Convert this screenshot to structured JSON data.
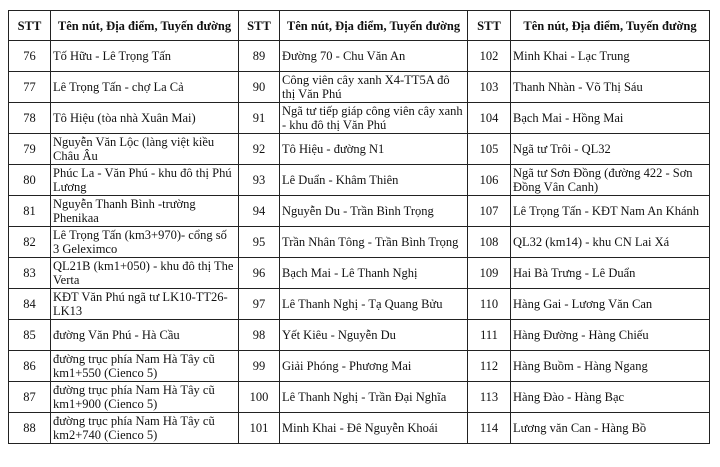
{
  "headers": {
    "stt": "STT",
    "name": "Tên nút, Địa điểm, Tuyến đường"
  },
  "rows": [
    [
      {
        "stt": "76",
        "name": "Tố Hữu - Lê Trọng Tấn"
      },
      {
        "stt": "89",
        "name": "Đường 70 - Chu Văn An"
      },
      {
        "stt": "102",
        "name": "Minh Khai - Lạc Trung"
      }
    ],
    [
      {
        "stt": "77",
        "name": "Lê Trọng Tấn - chợ La Cả"
      },
      {
        "stt": "90",
        "name": "Công viên cây xanh X4-TT5A đô thị Văn Phú"
      },
      {
        "stt": "103",
        "name": "Thanh Nhàn - Võ Thị Sáu"
      }
    ],
    [
      {
        "stt": "78",
        "name": "Tô Hiệu (tòa nhà Xuân Mai)"
      },
      {
        "stt": "91",
        "name": "Ngã tư tiếp giáp công viên cây xanh - khu đô thị Văn Phú"
      },
      {
        "stt": "104",
        "name": "Bạch Mai - Hồng Mai"
      }
    ],
    [
      {
        "stt": "79",
        "name": "Nguyễn Văn Lộc (làng việt kiều Châu Âu"
      },
      {
        "stt": "92",
        "name": "Tô Hiệu - đường N1"
      },
      {
        "stt": "105",
        "name": "Ngã tư Trôi - QL32"
      }
    ],
    [
      {
        "stt": "80",
        "name": "Phúc La - Văn Phú - khu đô thị Phú Lương"
      },
      {
        "stt": "93",
        "name": "Lê Duẩn - Khâm Thiên"
      },
      {
        "stt": "106",
        "name": "Ngã tư Sơn Đồng (đường 422 - Sơn Đồng Vân Canh)"
      }
    ],
    [
      {
        "stt": "81",
        "name": "Nguyễn Thanh Bình -trường Phenikaa"
      },
      {
        "stt": "94",
        "name": "Nguyễn Du - Trần Bình Trọng"
      },
      {
        "stt": "107",
        "name": "Lê Trọng Tấn - KĐT Nam An Khánh"
      }
    ],
    [
      {
        "stt": "82",
        "name": "Lê Trọng Tấn (km3+970)- cổng số 3 Geleximco"
      },
      {
        "stt": "95",
        "name": "Trần Nhân Tông - Trần Bình Trọng"
      },
      {
        "stt": "108",
        "name": "QL32 (km14) - khu CN Lai Xá"
      }
    ],
    [
      {
        "stt": "83",
        "name": "QL21B (km1+050) - khu đô thị The Verta"
      },
      {
        "stt": "96",
        "name": "Bạch Mai - Lê Thanh Nghị"
      },
      {
        "stt": "109",
        "name": "Hai Bà Trưng - Lê Duẩn"
      }
    ],
    [
      {
        "stt": "84",
        "name": "KĐT Văn Phú ngã tư LK10-TT26-LK13"
      },
      {
        "stt": "97",
        "name": "Lê Thanh Nghị - Tạ Quang Bửu"
      },
      {
        "stt": "110",
        "name": "Hàng Gai - Lương Văn Can"
      }
    ],
    [
      {
        "stt": "85",
        "name": "đường Văn Phú - Hà Cầu"
      },
      {
        "stt": "98",
        "name": "Yết Kiêu - Nguyễn Du"
      },
      {
        "stt": "111",
        "name": "Hàng Đường - Hàng Chiếu"
      }
    ],
    [
      {
        "stt": "86",
        "name": "đường trục phía Nam Hà Tây cũ km1+550 (Cienco 5)"
      },
      {
        "stt": "99",
        "name": "Giải Phóng - Phương Mai"
      },
      {
        "stt": "112",
        "name": "Hàng Buồm - Hàng Ngang"
      }
    ],
    [
      {
        "stt": "87",
        "name": "đường trục phía Nam Hà Tây cũ km1+900 (Cienco 5)"
      },
      {
        "stt": "100",
        "name": "Lê Thanh Nghị - Trần Đại Nghĩa"
      },
      {
        "stt": "113",
        "name": "Hàng Đào - Hàng Bạc"
      }
    ],
    [
      {
        "stt": "88",
        "name": "đường trục phía Nam Hà Tây cũ km2+740 (Cienco 5)"
      },
      {
        "stt": "101",
        "name": "Minh Khai - Đê Nguyễn Khoái"
      },
      {
        "stt": "114",
        "name": "Lương văn Can - Hàng Bồ"
      }
    ]
  ]
}
